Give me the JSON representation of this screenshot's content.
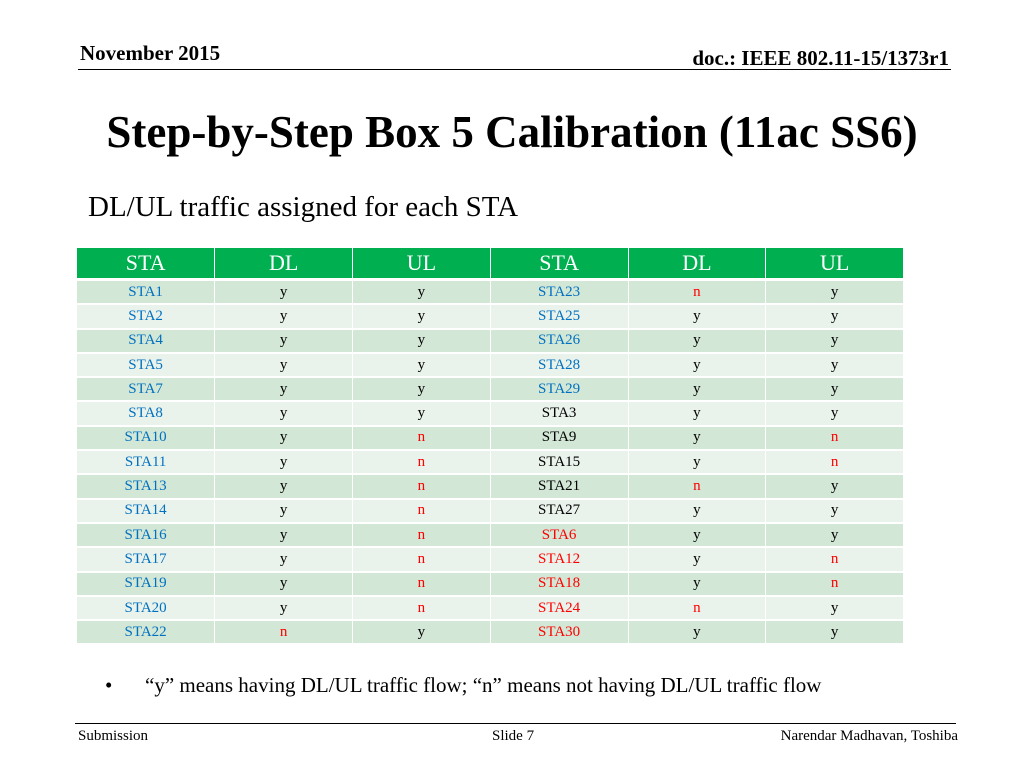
{
  "header": {
    "date": "November 2015",
    "doc": "doc.: IEEE 802.11-15/1373r1"
  },
  "title": "Step-by-Step Box 5 Calibration (11ac SS6)",
  "subtitle": "DL/UL traffic assigned for each STA",
  "table": {
    "columns": [
      "STA",
      "DL",
      "UL",
      "STA",
      "DL",
      "UL"
    ],
    "rows": [
      [
        {
          "t": "STA1",
          "c": "blue"
        },
        {
          "t": "y",
          "c": "black"
        },
        {
          "t": "y",
          "c": "black"
        },
        {
          "t": "STA23",
          "c": "blue"
        },
        {
          "t": "n",
          "c": "red"
        },
        {
          "t": "y",
          "c": "black"
        }
      ],
      [
        {
          "t": "STA2",
          "c": "blue"
        },
        {
          "t": "y",
          "c": "black"
        },
        {
          "t": "y",
          "c": "black"
        },
        {
          "t": "STA25",
          "c": "blue"
        },
        {
          "t": "y",
          "c": "black"
        },
        {
          "t": "y",
          "c": "black"
        }
      ],
      [
        {
          "t": "STA4",
          "c": "blue"
        },
        {
          "t": "y",
          "c": "black"
        },
        {
          "t": "y",
          "c": "black"
        },
        {
          "t": "STA26",
          "c": "blue"
        },
        {
          "t": "y",
          "c": "black"
        },
        {
          "t": "y",
          "c": "black"
        }
      ],
      [
        {
          "t": "STA5",
          "c": "blue"
        },
        {
          "t": "y",
          "c": "black"
        },
        {
          "t": "y",
          "c": "black"
        },
        {
          "t": "STA28",
          "c": "blue"
        },
        {
          "t": "y",
          "c": "black"
        },
        {
          "t": "y",
          "c": "black"
        }
      ],
      [
        {
          "t": "STA7",
          "c": "blue"
        },
        {
          "t": "y",
          "c": "black"
        },
        {
          "t": "y",
          "c": "black"
        },
        {
          "t": "STA29",
          "c": "blue"
        },
        {
          "t": "y",
          "c": "black"
        },
        {
          "t": "y",
          "c": "black"
        }
      ],
      [
        {
          "t": "STA8",
          "c": "blue"
        },
        {
          "t": "y",
          "c": "black"
        },
        {
          "t": "y",
          "c": "black"
        },
        {
          "t": "STA3",
          "c": "black"
        },
        {
          "t": "y",
          "c": "black"
        },
        {
          "t": "y",
          "c": "black"
        }
      ],
      [
        {
          "t": "STA10",
          "c": "blue"
        },
        {
          "t": "y",
          "c": "black"
        },
        {
          "t": "n",
          "c": "red"
        },
        {
          "t": "STA9",
          "c": "black"
        },
        {
          "t": "y",
          "c": "black"
        },
        {
          "t": "n",
          "c": "red"
        }
      ],
      [
        {
          "t": "STA11",
          "c": "blue"
        },
        {
          "t": "y",
          "c": "black"
        },
        {
          "t": "n",
          "c": "red"
        },
        {
          "t": "STA15",
          "c": "black"
        },
        {
          "t": "y",
          "c": "black"
        },
        {
          "t": "n",
          "c": "red"
        }
      ],
      [
        {
          "t": "STA13",
          "c": "blue"
        },
        {
          "t": "y",
          "c": "black"
        },
        {
          "t": "n",
          "c": "red"
        },
        {
          "t": "STA21",
          "c": "black"
        },
        {
          "t": "n",
          "c": "red"
        },
        {
          "t": "y",
          "c": "black"
        }
      ],
      [
        {
          "t": "STA14",
          "c": "blue"
        },
        {
          "t": "y",
          "c": "black"
        },
        {
          "t": "n",
          "c": "red"
        },
        {
          "t": "STA27",
          "c": "black"
        },
        {
          "t": "y",
          "c": "black"
        },
        {
          "t": "y",
          "c": "black"
        }
      ],
      [
        {
          "t": "STA16",
          "c": "blue"
        },
        {
          "t": "y",
          "c": "black"
        },
        {
          "t": "n",
          "c": "red"
        },
        {
          "t": "STA6",
          "c": "red"
        },
        {
          "t": "y",
          "c": "black"
        },
        {
          "t": "y",
          "c": "black"
        }
      ],
      [
        {
          "t": "STA17",
          "c": "blue"
        },
        {
          "t": "y",
          "c": "black"
        },
        {
          "t": "n",
          "c": "red"
        },
        {
          "t": "STA12",
          "c": "red"
        },
        {
          "t": "y",
          "c": "black"
        },
        {
          "t": "n",
          "c": "red"
        }
      ],
      [
        {
          "t": "STA19",
          "c": "blue"
        },
        {
          "t": "y",
          "c": "black"
        },
        {
          "t": "n",
          "c": "red"
        },
        {
          "t": "STA18",
          "c": "red"
        },
        {
          "t": "y",
          "c": "black"
        },
        {
          "t": "n",
          "c": "red"
        }
      ],
      [
        {
          "t": "STA20",
          "c": "blue"
        },
        {
          "t": "y",
          "c": "black"
        },
        {
          "t": "n",
          "c": "red"
        },
        {
          "t": "STA24",
          "c": "red"
        },
        {
          "t": "n",
          "c": "red"
        },
        {
          "t": "y",
          "c": "black"
        }
      ],
      [
        {
          "t": "STA22",
          "c": "blue"
        },
        {
          "t": "n",
          "c": "red"
        },
        {
          "t": "y",
          "c": "black"
        },
        {
          "t": "STA30",
          "c": "red"
        },
        {
          "t": "y",
          "c": "black"
        },
        {
          "t": "y",
          "c": "black"
        }
      ]
    ]
  },
  "colors": {
    "header_green": "#00b050",
    "row_dark": "#d2e7d6",
    "row_light": "#eaf3eb",
    "blue": "#0070c0",
    "red": "#ff0000"
  },
  "note": {
    "bullet": "•",
    "text": "“y” means having DL/UL traffic flow;  “n” means not having DL/UL traffic flow"
  },
  "footer": {
    "left": "Submission",
    "center": "Slide 7",
    "right": "Narendar Madhavan, Toshiba"
  }
}
